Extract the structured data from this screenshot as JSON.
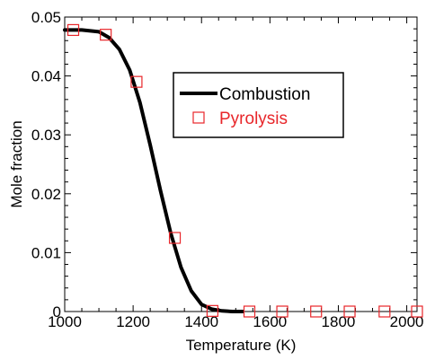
{
  "chart_data": {
    "type": "line",
    "xlabel": "Temperature (K)",
    "ylabel": "Mole fraction",
    "xlim": [
      1000,
      2030
    ],
    "ylim": [
      0,
      0.05
    ],
    "x_ticks": [
      "1000",
      "1200",
      "1400",
      "1600",
      "1800",
      "2000"
    ],
    "y_ticks": [
      "0",
      "0.01",
      "0.02",
      "0.03",
      "0.04",
      "0.05"
    ],
    "grid": false,
    "legend_position": "upper-right",
    "series": [
      {
        "name": "Combustion",
        "style": "line",
        "color": "#000000",
        "x": [
          1000,
          1050,
          1100,
          1130,
          1160,
          1190,
          1220,
          1250,
          1280,
          1310,
          1340,
          1370,
          1400,
          1430,
          1460,
          1490,
          1520
        ],
        "y": [
          0.0478,
          0.0478,
          0.0475,
          0.0465,
          0.0445,
          0.041,
          0.0355,
          0.0283,
          0.0205,
          0.0133,
          0.0075,
          0.0035,
          0.0012,
          0.0004,
          0.0001,
          0.0,
          0.0
        ]
      },
      {
        "name": "Pyrolysis",
        "style": "marker",
        "marker": "open-square",
        "color": "#e8262a",
        "x": [
          1025,
          1120,
          1210,
          1322,
          1432,
          1540,
          1636,
          1735,
          1833,
          1935,
          2030
        ],
        "y": [
          0.0478,
          0.047,
          0.039,
          0.0125,
          0.0001,
          0.0,
          0.0,
          0.0,
          0.0,
          0.0,
          0.0
        ]
      }
    ]
  }
}
